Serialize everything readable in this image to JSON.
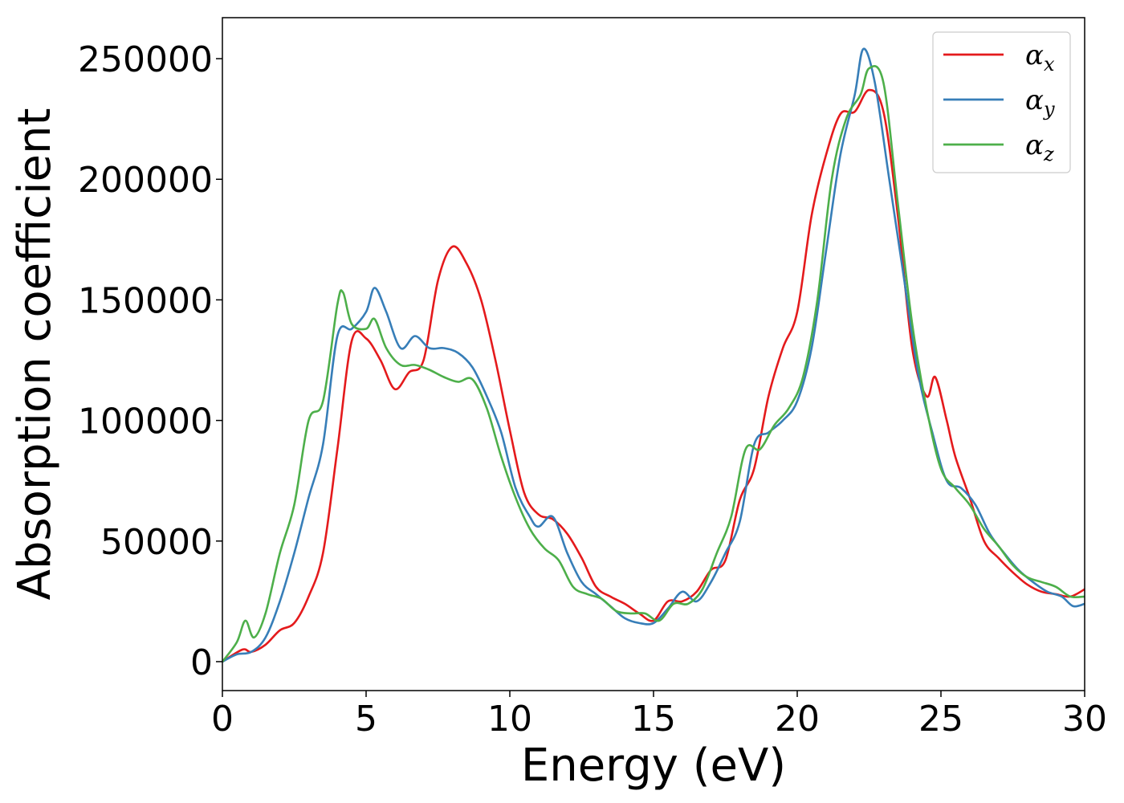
{
  "chart_data": {
    "type": "line",
    "xlabel": "Energy (eV)",
    "ylabel": "Absorption coefficient",
    "xlim": [
      0,
      30
    ],
    "ylim": [
      -12000,
      267000
    ],
    "xticks": [
      0,
      5,
      10,
      15,
      20,
      25,
      30
    ],
    "xtick_labels": [
      "0",
      "5",
      "10",
      "15",
      "20",
      "25",
      "30"
    ],
    "yticks": [
      0,
      50000,
      100000,
      150000,
      200000,
      250000
    ],
    "ytick_labels": [
      "0",
      "50000",
      "100000",
      "150000",
      "200000",
      "250000"
    ],
    "grid": false,
    "legend_position": "top-right",
    "series": [
      {
        "name": "α",
        "subscript": "x",
        "color": "#e41a1c",
        "x": [
          0,
          0.7,
          1,
          1.5,
          2,
          2.5,
          3,
          3.5,
          4,
          4.5,
          5,
          5.5,
          6,
          6.5,
          7,
          7.5,
          8,
          8.5,
          9,
          9.5,
          10,
          10.5,
          11,
          11.5,
          12,
          12.5,
          13,
          13.5,
          14,
          14.5,
          15,
          15.5,
          16,
          16.5,
          17,
          17.5,
          18,
          18.5,
          19,
          19.5,
          20,
          20.5,
          21,
          21.5,
          22,
          22.5,
          23,
          23.5,
          24,
          24.5,
          24.8,
          25.2,
          25.5,
          26,
          26.5,
          27,
          27.5,
          28,
          28.5,
          29,
          29.5,
          30
        ],
        "y": [
          0,
          5000,
          4000,
          7000,
          13000,
          16000,
          27000,
          45000,
          88000,
          133000,
          134000,
          125000,
          113000,
          120000,
          125000,
          158000,
          172000,
          165000,
          150000,
          125000,
          96000,
          70000,
          61000,
          59000,
          53000,
          43000,
          31000,
          27000,
          24000,
          20000,
          17000,
          25000,
          25000,
          29000,
          38000,
          42000,
          67000,
          80000,
          110000,
          130000,
          145000,
          185000,
          210000,
          227000,
          228000,
          237000,
          228000,
          185000,
          130000,
          110000,
          118000,
          100000,
          85000,
          68000,
          50000,
          43000,
          37000,
          32000,
          29000,
          28000,
          27000,
          30000
        ]
      },
      {
        "name": "α",
        "subscript": "y",
        "color": "#377eb8",
        "x": [
          0,
          0.5,
          1,
          1.5,
          2,
          2.5,
          3,
          3.5,
          4,
          4.5,
          5,
          5.3,
          5.7,
          6.2,
          6.7,
          7.2,
          7.7,
          8.2,
          8.7,
          9.2,
          9.7,
          10.2,
          10.7,
          11,
          11.5,
          12,
          12.5,
          13,
          13.5,
          14,
          14.5,
          15,
          15.5,
          16,
          16.5,
          17,
          17.5,
          18,
          18.5,
          19,
          19.5,
          20,
          20.5,
          21,
          21.5,
          22,
          22.3,
          22.7,
          23.2,
          23.7,
          24.2,
          24.7,
          25.2,
          25.7,
          26.2,
          26.7,
          27.2,
          27.7,
          28.2,
          28.7,
          29.2,
          29.6,
          30
        ],
        "y": [
          0,
          3000,
          4000,
          10000,
          25000,
          45000,
          68000,
          90000,
          135000,
          138000,
          145000,
          155000,
          145000,
          130000,
          135000,
          130000,
          130000,
          128000,
          122000,
          110000,
          95000,
          72000,
          60000,
          56000,
          60000,
          45000,
          33000,
          28000,
          23000,
          18000,
          16000,
          16000,
          22000,
          29000,
          25000,
          33000,
          45000,
          58000,
          90000,
          95000,
          100000,
          108000,
          130000,
          170000,
          210000,
          235000,
          254000,
          240000,
          200000,
          160000,
          120000,
          95000,
          75000,
          72000,
          65000,
          53000,
          45000,
          38000,
          33000,
          29000,
          27000,
          23000,
          24000
        ]
      },
      {
        "name": "α",
        "subscript": "z",
        "color": "#4daf4a",
        "x": [
          0,
          0.5,
          0.8,
          1.1,
          1.5,
          2,
          2.5,
          3,
          3.5,
          4,
          4.2,
          4.5,
          5,
          5.3,
          5.7,
          6.2,
          6.7,
          7.2,
          7.7,
          8.2,
          8.7,
          9.2,
          9.7,
          10.2,
          10.7,
          11.2,
          11.7,
          12.2,
          12.7,
          13.2,
          13.7,
          14.2,
          14.7,
          15.2,
          15.7,
          16.2,
          16.7,
          17.2,
          17.7,
          18.2,
          18.7,
          19.2,
          19.7,
          20.2,
          20.7,
          21.2,
          21.7,
          22.2,
          22.5,
          23,
          23.5,
          24,
          24.5,
          25,
          25.5,
          26,
          26.5,
          27,
          27.5,
          28,
          28.5,
          29,
          29.5,
          30
        ],
        "y": [
          0,
          8000,
          17000,
          10000,
          20000,
          45000,
          65000,
          100000,
          108000,
          148000,
          153000,
          140000,
          138000,
          142000,
          130000,
          123000,
          123000,
          121000,
          118000,
          116000,
          117000,
          105000,
          85000,
          68000,
          55000,
          47000,
          42000,
          31000,
          28000,
          26000,
          21000,
          20000,
          20000,
          17000,
          24000,
          24000,
          30000,
          45000,
          60000,
          88000,
          88000,
          98000,
          105000,
          118000,
          150000,
          200000,
          225000,
          235000,
          246000,
          240000,
          190000,
          140000,
          105000,
          80000,
          72000,
          65000,
          55000,
          48000,
          40000,
          35000,
          33000,
          31000,
          27000,
          27000
        ]
      }
    ]
  }
}
